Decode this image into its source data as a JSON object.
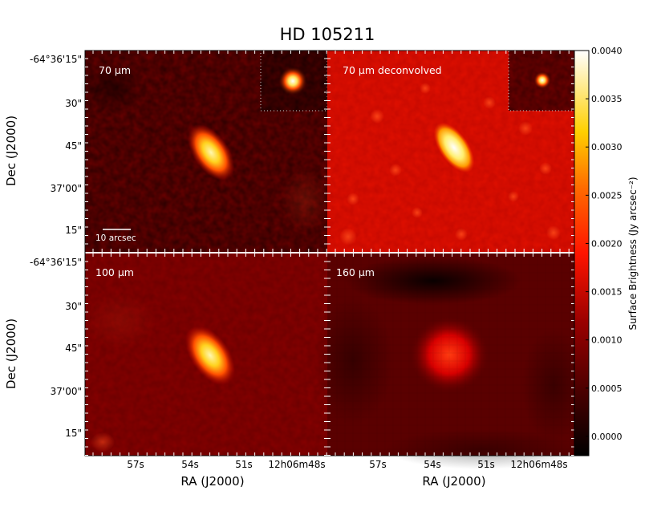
{
  "figure": {
    "title": "HD 105211",
    "panels": [
      {
        "label": "70 μm"
      },
      {
        "label": "70 μm deconvolved"
      },
      {
        "label": "100 μm"
      },
      {
        "label": "160 μm"
      }
    ],
    "scalebar_label": "10 arcsec",
    "dec_axis": {
      "label": "Dec (J2000)",
      "ticks": [
        "-64°36'15\"",
        "30\"",
        "45\"",
        "37'00\"",
        "15\""
      ]
    },
    "ra_axis": {
      "label": "RA (J2000)",
      "ticks": [
        "57s",
        "54s",
        "51s",
        "12h06m48s"
      ]
    },
    "colorbar": {
      "label": "Surface Brightness (Jy arcsec⁻²)",
      "ticks": [
        "0.0040",
        "0.0035",
        "0.0030",
        "0.0025",
        "0.0020",
        "0.0015",
        "0.0010",
        "0.0005",
        "0.0000"
      ],
      "range": [
        -0.0002,
        0.004
      ]
    }
  }
}
